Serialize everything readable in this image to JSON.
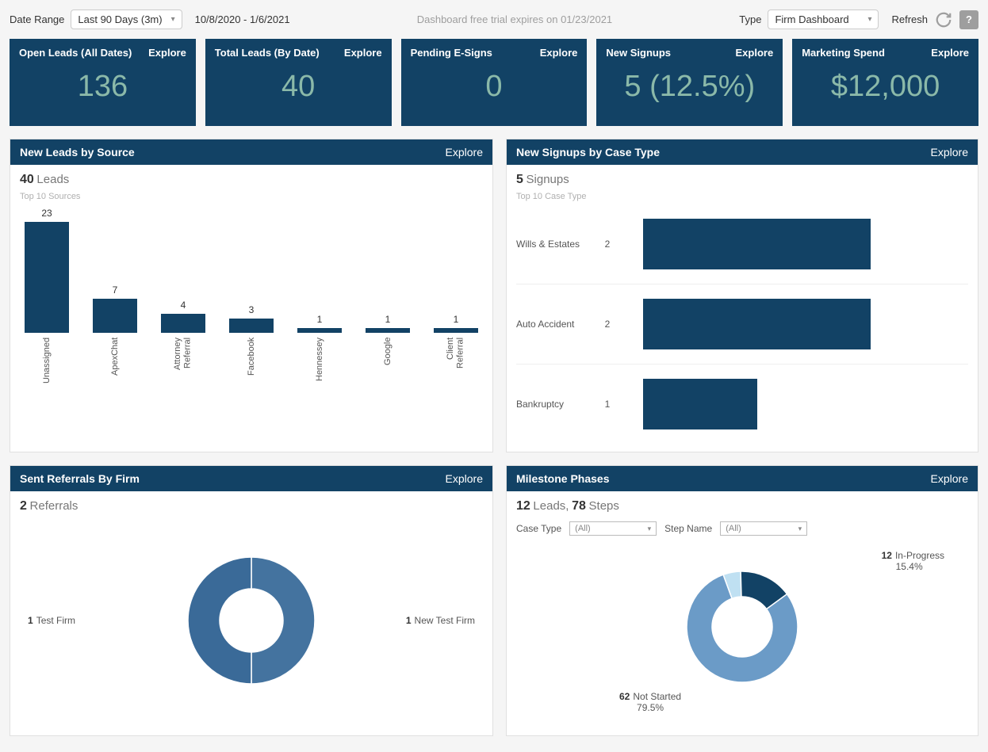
{
  "topbar": {
    "date_range_label": "Date Range",
    "date_range_value": "Last 90 Days (3m)",
    "date_range_text": "10/8/2020  -  1/6/2021",
    "trial_text": "Dashboard free trial expires on 01/23/2021",
    "type_label": "Type",
    "type_value": "Firm Dashboard",
    "refresh_label": "Refresh"
  },
  "colors": {
    "panel_header": "#124265",
    "metric_value": "#8bb9a9",
    "bar": "#124265",
    "donut_a": "#44739f",
    "donut_b": "#3a6a98",
    "donut_light": "#6b9bc7",
    "donut_pale": "#bfe0f2",
    "donut_dark": "#124265"
  },
  "cards": [
    {
      "title": "Open Leads (All Dates)",
      "explore": "Explore",
      "value": "136"
    },
    {
      "title": "Total Leads (By Date)",
      "explore": "Explore",
      "value": "40"
    },
    {
      "title": "Pending E-Signs",
      "explore": "Explore",
      "value": "0"
    },
    {
      "title": "New Signups",
      "explore": "Explore",
      "value": "5 (12.5%)"
    },
    {
      "title": "Marketing Spend",
      "explore": "Explore",
      "value": "$12,000"
    }
  ],
  "leads_by_source": {
    "title": "New Leads by Source",
    "explore": "Explore",
    "count": "40",
    "count_label": "Leads",
    "sub": "Top 10 Sources",
    "max": 23,
    "bars": [
      {
        "label": "Unassigned",
        "value": 23
      },
      {
        "label": "ApexChat",
        "value": 7
      },
      {
        "label": "Attorney Referral",
        "value": 4
      },
      {
        "label": "Facebook",
        "value": 3
      },
      {
        "label": "Hennessey",
        "value": 1
      },
      {
        "label": "Google",
        "value": 1
      },
      {
        "label": "Client Referral",
        "value": 1
      }
    ]
  },
  "signups_by_case": {
    "title": "New Signups by Case Type",
    "explore": "Explore",
    "count": "5",
    "count_label": "Signups",
    "sub": "Top 10 Case Type",
    "max": 2,
    "rows": [
      {
        "label": "Wills & Estates",
        "value": 2
      },
      {
        "label": "Auto Accident",
        "value": 2
      },
      {
        "label": "Bankruptcy",
        "value": 1
      }
    ]
  },
  "referrals": {
    "title": "Sent Referrals By Firm",
    "explore": "Explore",
    "count": "2",
    "count_label": "Referrals",
    "slices": [
      {
        "label": "Test Firm",
        "value": 1,
        "color": "#44739f"
      },
      {
        "label": "New Test Firm",
        "value": 1,
        "color": "#3a6a98"
      }
    ]
  },
  "milestones": {
    "title": "Milestone Phases",
    "explore": "Explore",
    "leads_count": "12",
    "leads_label": "Leads,",
    "steps_count": "78",
    "steps_label": "Steps",
    "case_type_label": "Case Type",
    "case_type_value": "(All)",
    "step_name_label": "Step Name",
    "step_name_value": "(All)",
    "slices": [
      {
        "label": "Not Started",
        "value": 62,
        "pct": "79.5%",
        "color": "#6b9bc7"
      },
      {
        "label": "In-Progress",
        "value": 12,
        "pct": "15.4%",
        "color": "#124265"
      },
      {
        "label": "",
        "value": 4,
        "pct": "",
        "color": "#bfe0f2"
      }
    ]
  }
}
